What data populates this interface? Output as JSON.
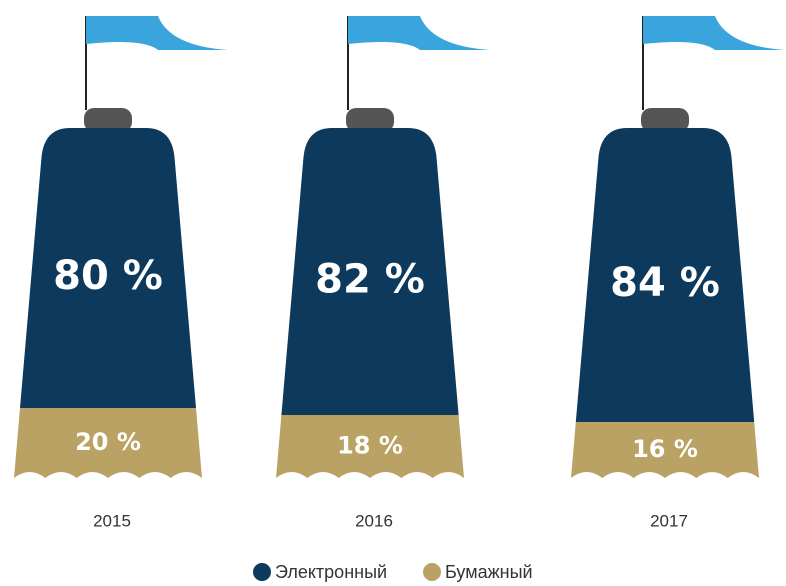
{
  "chart_data": {
    "type": "bar",
    "stacked": true,
    "categories": [
      "2015",
      "2016",
      "2017"
    ],
    "series": [
      {
        "name": "Электронный",
        "color": "#0d3a5c",
        "values": [
          80,
          82,
          84
        ],
        "value_labels": [
          "80 %",
          "82 %",
          "84 %"
        ]
      },
      {
        "name": "Бумажный",
        "color": "#b9a263",
        "values": [
          20,
          18,
          16
        ],
        "value_labels": [
          "20 %",
          "18 %",
          "16 %"
        ]
      }
    ]
  }
}
